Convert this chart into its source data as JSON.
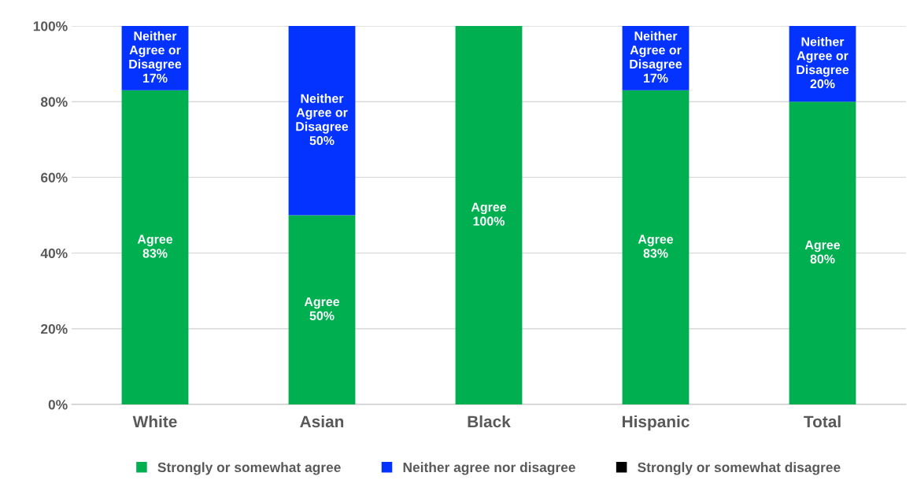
{
  "chart_data": {
    "type": "bar",
    "stacked": true,
    "categories": [
      "White",
      "Asian",
      "Black",
      "Hispanic",
      "Total"
    ],
    "series": [
      {
        "name": "Strongly or somewhat agree",
        "color": "#00b050",
        "values": [
          83,
          50,
          100,
          83,
          80
        ],
        "value_labels": [
          "Agree\n83%",
          "Agree\n50%",
          "Agree\n100%",
          "Agree\n83%",
          "Agree\n80%"
        ]
      },
      {
        "name": "Neither agree nor disagree",
        "color": "#0433ff",
        "values": [
          17,
          50,
          0,
          17,
          20
        ],
        "value_labels": [
          "Neither\nAgree or\nDisagree\n17%",
          "Neither\nAgree or\nDisagree\n50%",
          null,
          "Neither\nAgree or\nDisagree\n17%",
          "Neither\nAgree or\nDisagree\n20%"
        ]
      },
      {
        "name": "Strongly or somewhat disagree",
        "color": "#000000",
        "values": [
          0,
          0,
          0,
          0,
          0
        ],
        "value_labels": [
          null,
          null,
          null,
          null,
          null
        ]
      }
    ],
    "ylim": [
      0,
      100
    ],
    "yticks": [
      {
        "value": 0,
        "label": "0%"
      },
      {
        "value": 20,
        "label": "20%"
      },
      {
        "value": 40,
        "label": "40%"
      },
      {
        "value": 60,
        "label": "60%"
      },
      {
        "value": 80,
        "label": "80%"
      },
      {
        "value": 100,
        "label": "100%"
      }
    ],
    "grid": "y",
    "legend": "bottom"
  }
}
